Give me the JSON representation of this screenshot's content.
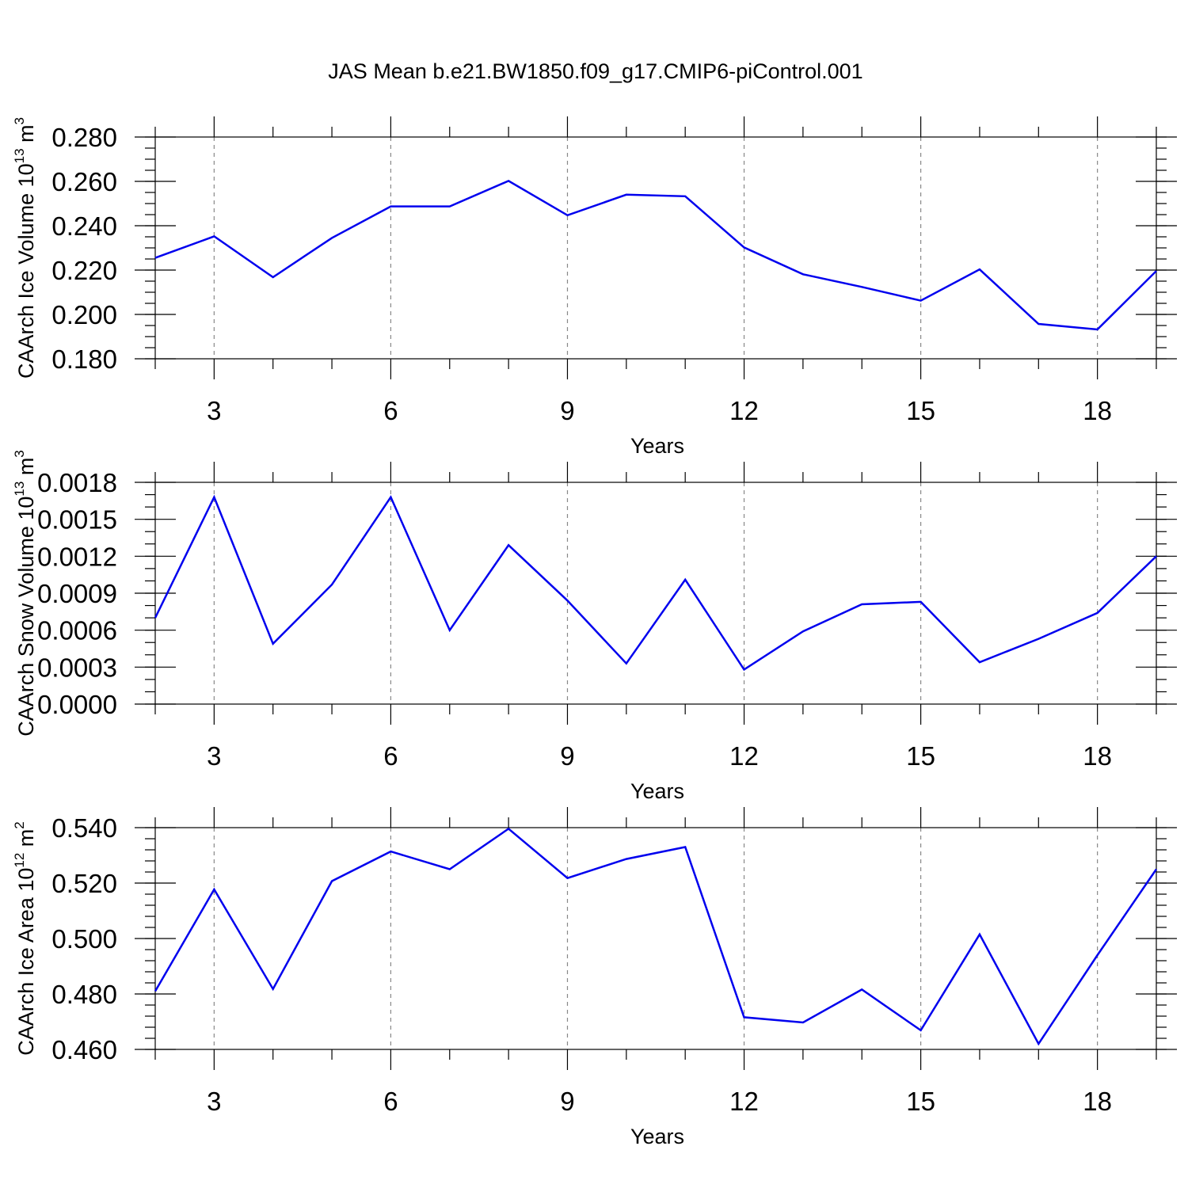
{
  "title": "JAS Mean b.e21.BW1850.f09_g17.CMIP6-piControl.001",
  "colors": {
    "series": "#0000ee",
    "grid": "#888888",
    "axis": "#000000"
  },
  "chart_data": [
    {
      "type": "line",
      "title": "JAS Mean b.e21.BW1850.f09_g17.CMIP6-piControl.001",
      "ylabel": {
        "text": "CAArch Ice Volume 10",
        "sup": "13",
        "unit": " m",
        "unitsup": "3"
      },
      "xlabel": "Years",
      "xlim": [
        2,
        19
      ],
      "ylim": [
        0.18,
        0.28
      ],
      "xticks": [
        3,
        6,
        9,
        12,
        15,
        18
      ],
      "xtick_labels": [
        "3",
        "6",
        "9",
        "12",
        "15",
        "18"
      ],
      "yticks": [
        0.18,
        0.2,
        0.22,
        0.24,
        0.26,
        0.28
      ],
      "ytick_labels": [
        "0.180",
        "0.200",
        "0.220",
        "0.240",
        "0.260",
        "0.280"
      ],
      "y_minor": 0.005,
      "grid": "vertical-dashed",
      "series": [
        {
          "name": "CAArch Ice Volume",
          "x": [
            2,
            3,
            4,
            5,
            6,
            7,
            8,
            9,
            10,
            11,
            12,
            13,
            14,
            15,
            16,
            17,
            18,
            19
          ],
          "values": [
            0.2255,
            0.2352,
            0.2168,
            0.2345,
            0.2487,
            0.2487,
            0.2602,
            0.2447,
            0.254,
            0.2533,
            0.2302,
            0.2181,
            0.2124,
            0.2062,
            0.2203,
            0.1957,
            0.1932,
            0.2196
          ]
        }
      ]
    },
    {
      "type": "line",
      "ylabel": {
        "text": "CAArch Snow Volume 10",
        "sup": "13",
        "unit": " m",
        "unitsup": "3"
      },
      "xlabel": "Years",
      "xlim": [
        2,
        19
      ],
      "ylim": [
        0.0,
        0.0018
      ],
      "xticks": [
        3,
        6,
        9,
        12,
        15,
        18
      ],
      "xtick_labels": [
        "3",
        "6",
        "9",
        "12",
        "15",
        "18"
      ],
      "yticks": [
        0.0,
        0.0003,
        0.0006,
        0.0009,
        0.0012,
        0.0015,
        0.0018
      ],
      "ytick_labels": [
        "0.0000",
        "0.0003",
        "0.0006",
        "0.0009",
        "0.0012",
        "0.0015",
        "0.0018"
      ],
      "y_minor": 0.0001,
      "grid": "vertical-dashed",
      "series": [
        {
          "name": "CAArch Snow Volume",
          "x": [
            2,
            3,
            4,
            5,
            6,
            7,
            8,
            9,
            10,
            11,
            12,
            13,
            14,
            15,
            16,
            17,
            18,
            19
          ],
          "values": [
            0.0007,
            0.00168,
            0.00049,
            0.00097,
            0.00168,
            0.0006,
            0.00129,
            0.00084,
            0.00033,
            0.00101,
            0.00028,
            0.00059,
            0.00081,
            0.00083,
            0.00034,
            0.00053,
            0.00074,
            0.0012
          ]
        }
      ]
    },
    {
      "type": "line",
      "ylabel": {
        "text": "CAArch Ice Area 10",
        "sup": "12",
        "unit": " m",
        "unitsup": "2"
      },
      "xlabel": "Years",
      "xlim": [
        2,
        19
      ],
      "ylim": [
        0.46,
        0.54
      ],
      "xticks": [
        3,
        6,
        9,
        12,
        15,
        18
      ],
      "xtick_labels": [
        "3",
        "6",
        "9",
        "12",
        "15",
        "18"
      ],
      "yticks": [
        0.46,
        0.48,
        0.5,
        0.52,
        0.54
      ],
      "ytick_labels": [
        "0.460",
        "0.480",
        "0.500",
        "0.520",
        "0.540"
      ],
      "y_minor": 0.004,
      "grid": "vertical-dashed",
      "series": [
        {
          "name": "CAArch Ice Area",
          "x": [
            2,
            3,
            4,
            5,
            6,
            7,
            8,
            9,
            10,
            11,
            12,
            13,
            14,
            15,
            16,
            17,
            18,
            19
          ],
          "values": [
            0.481,
            0.5177,
            0.4818,
            0.5207,
            0.5314,
            0.525,
            0.5396,
            0.5218,
            0.5287,
            0.533,
            0.4716,
            0.4697,
            0.4816,
            0.4669,
            0.5015,
            0.462,
            0.494,
            0.525
          ]
        }
      ]
    }
  ]
}
